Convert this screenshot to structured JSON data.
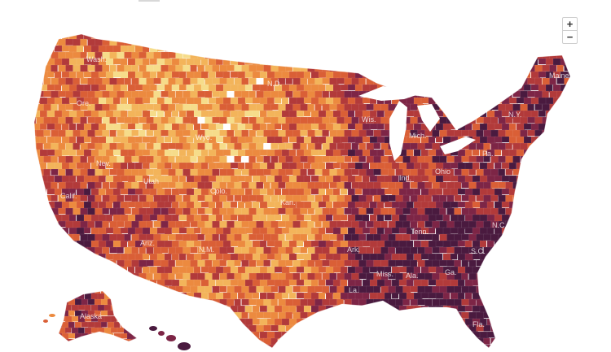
{
  "map": {
    "zoom_in_label": "+",
    "zoom_out_label": "−",
    "palette": [
      "#f6dc8a",
      "#f3b45a",
      "#ec8a3f",
      "#da5f36",
      "#b23a3a",
      "#7d2546",
      "#4a1a3f"
    ],
    "state_labels": [
      {
        "id": "wash",
        "text": "Wash."
      },
      {
        "id": "ore",
        "text": "Ore."
      },
      {
        "id": "calif",
        "text": "Calif."
      },
      {
        "id": "nev",
        "text": "Nev."
      },
      {
        "id": "utah",
        "text": "Utah"
      },
      {
        "id": "ariz",
        "text": "Ariz."
      },
      {
        "id": "wyo",
        "text": "Wyo."
      },
      {
        "id": "colo",
        "text": "Colo."
      },
      {
        "id": "nm",
        "text": "N.M."
      },
      {
        "id": "nd",
        "text": "N.D."
      },
      {
        "id": "kan",
        "text": "Kan."
      },
      {
        "id": "wis",
        "text": "Wis."
      },
      {
        "id": "mich",
        "text": "Mich."
      },
      {
        "id": "ind",
        "text": "Ind."
      },
      {
        "id": "ohio",
        "text": "Ohio"
      },
      {
        "id": "pa",
        "text": "Pa."
      },
      {
        "id": "ny",
        "text": "N.Y."
      },
      {
        "id": "maine",
        "text": "Maine"
      },
      {
        "id": "tenn",
        "text": "Tenn."
      },
      {
        "id": "nc",
        "text": "N.C."
      },
      {
        "id": "sc",
        "text": "S.C."
      },
      {
        "id": "ark",
        "text": "Ark."
      },
      {
        "id": "miss",
        "text": "Miss."
      },
      {
        "id": "ala",
        "text": "Ala."
      },
      {
        "id": "ga",
        "text": "Ga."
      },
      {
        "id": "la",
        "text": "La."
      },
      {
        "id": "fla",
        "text": "Fla."
      },
      {
        "id": "alaska",
        "text": "Alaska"
      }
    ]
  }
}
